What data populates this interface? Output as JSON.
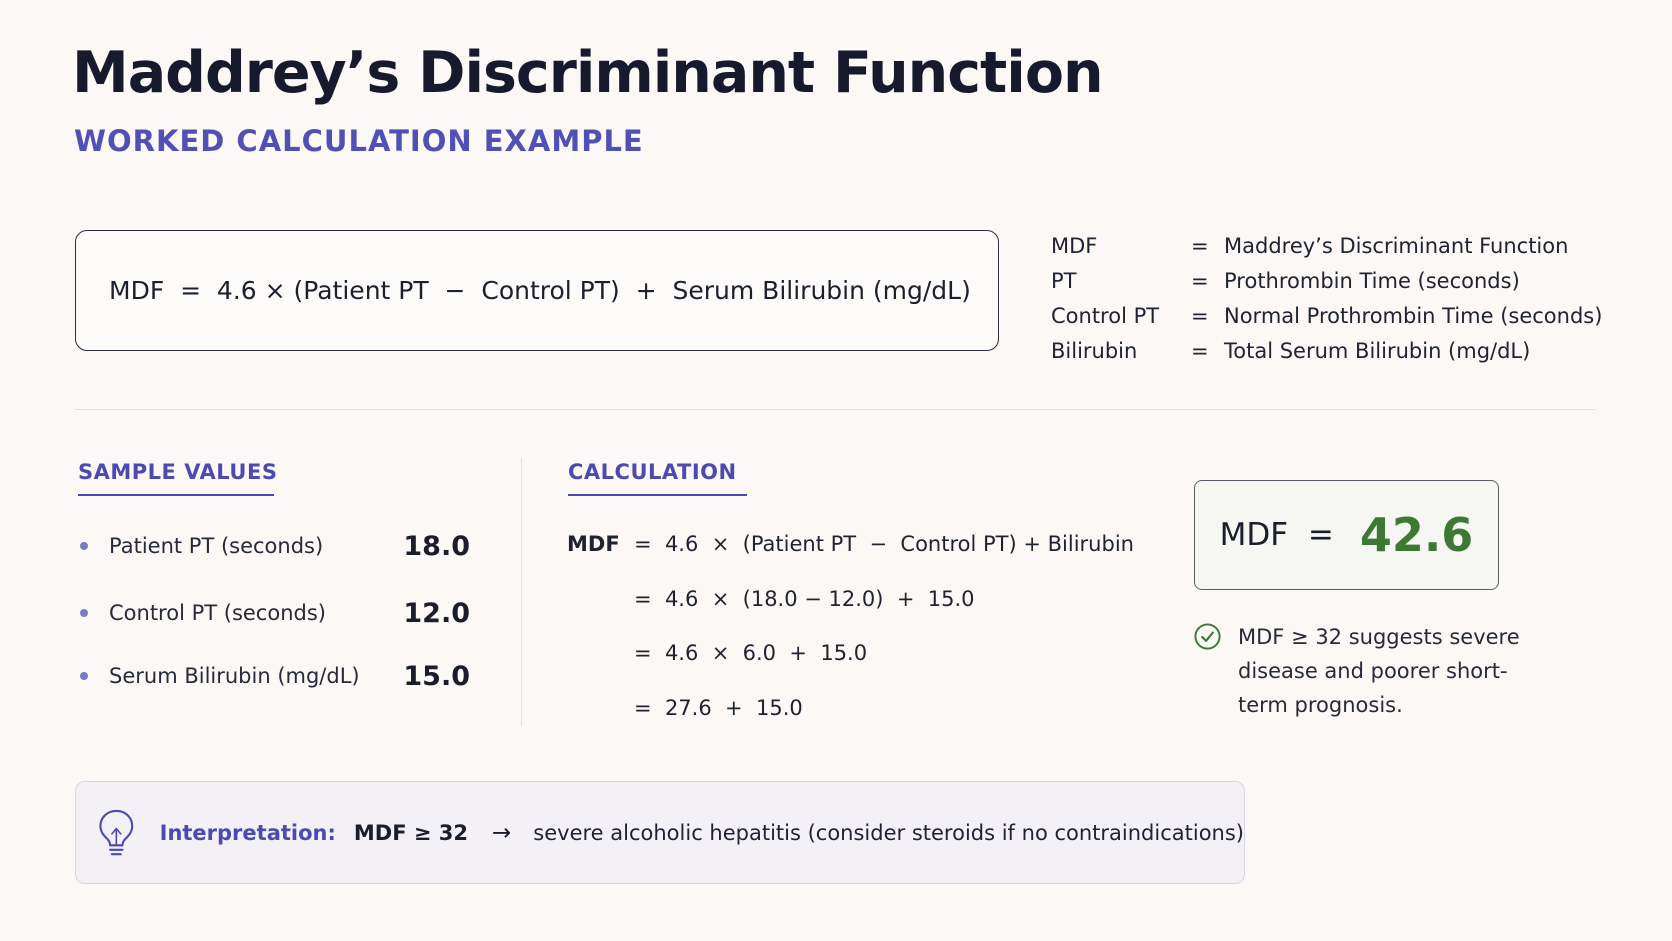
{
  "header": {
    "title": "Maddrey’s Discriminant Function",
    "subtitle": "WORKED CALCULATION EXAMPLE"
  },
  "formula": {
    "text": "MDF  =  4.6 × (Patient PT  −  Control PT)  +  Serum Bilirubin (mg/dL)"
  },
  "definitions": [
    {
      "term": "MDF",
      "eq": "=",
      "desc": "Maddrey’s Discriminant Function"
    },
    {
      "term": "PT",
      "eq": "=",
      "desc": "Prothrombin Time (seconds)"
    },
    {
      "term": "Control PT",
      "eq": "=",
      "desc": "Normal Prothrombin Time (seconds)"
    },
    {
      "term": "Bilirubin",
      "eq": "=",
      "desc": "Total Serum Bilirubin (mg/dL)"
    }
  ],
  "samples": {
    "heading": "SAMPLE VALUES",
    "items": [
      {
        "label": "Patient PT (seconds)",
        "value": "18.0"
      },
      {
        "label": "Control PT (seconds)",
        "value": "12.0"
      },
      {
        "label": "Serum Bilirubin (mg/dL)",
        "value": "15.0"
      }
    ]
  },
  "calculation": {
    "heading": "CALCULATION",
    "lhs": "MDF",
    "lines": [
      "=  4.6  ×  (Patient PT  −  Control PT) + Bilirubin",
      "=  4.6  ×  (18.0 − 12.0)  +  15.0",
      "=  4.6  ×  6.0  +  15.0",
      "=  27.6  +  15.0"
    ]
  },
  "result": {
    "label": "MDF  =",
    "value": "42.6",
    "note": "MDF ≥ 32 suggests severe disease and poorer short-term prognosis."
  },
  "interpretation": {
    "label": "Interpretation:",
    "condition": "MDF ≥ 32",
    "arrow": "→",
    "text": "severe alcoholic hepatitis (consider steroids if no contraindications)"
  },
  "colors": {
    "accent": "#4b4ab0",
    "result_green": "#3c7a34",
    "background": "#fbf8f5"
  },
  "icons": {
    "note": "check-circle-icon",
    "interpretation": "lightbulb-icon"
  }
}
